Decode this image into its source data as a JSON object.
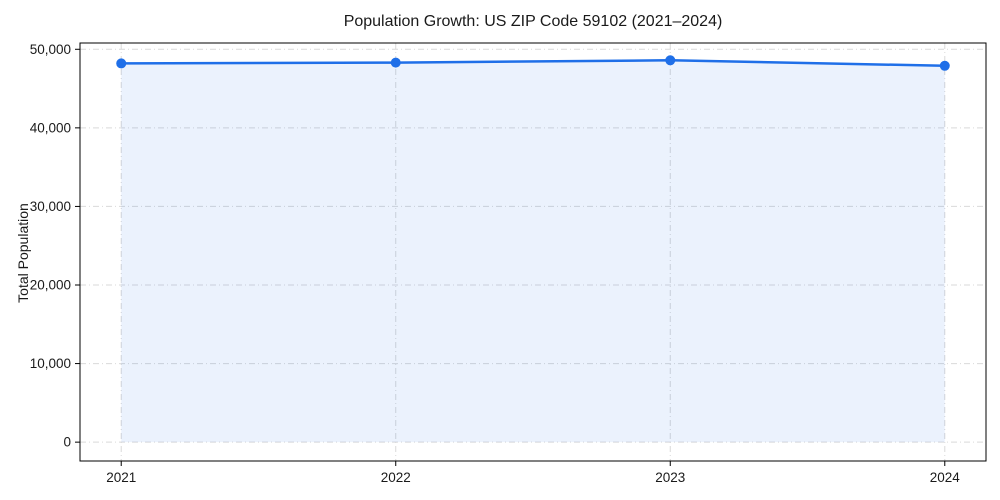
{
  "figure": {
    "title": "Population Growth: US ZIP Code 59102 (2021–2024)",
    "y_axis_label": "Total Population"
  },
  "chart_data": {
    "type": "line",
    "title": "Population Growth: US ZIP Code 59102 (2021–2024)",
    "xlabel": "",
    "ylabel": "Total Population",
    "x": [
      "2021",
      "2022",
      "2023",
      "2024"
    ],
    "series": [
      {
        "name": "Total Population",
        "values": [
          48200,
          48300,
          48600,
          47900
        ]
      }
    ],
    "marker": "circle",
    "area_fill_to_zero": true,
    "ylim": [
      -2400,
      50800
    ],
    "yticks": [
      0,
      10000,
      20000,
      30000,
      40000,
      50000
    ],
    "ytick_labels": [
      "0",
      "10,000",
      "20,000",
      "30,000",
      "40,000",
      "50,000"
    ],
    "xtick_labels": [
      "2021",
      "2022",
      "2023",
      "2024"
    ],
    "grid": true,
    "grid_style": "dash-dot",
    "legend": "none",
    "colors": {
      "line": "#1f6fe8",
      "marker": "#1f6fe8",
      "fill": "rgba(31,111,232,0.09)",
      "grid": "#d9d9d9",
      "axis": "#000000",
      "text": "#1a1a1a"
    }
  }
}
